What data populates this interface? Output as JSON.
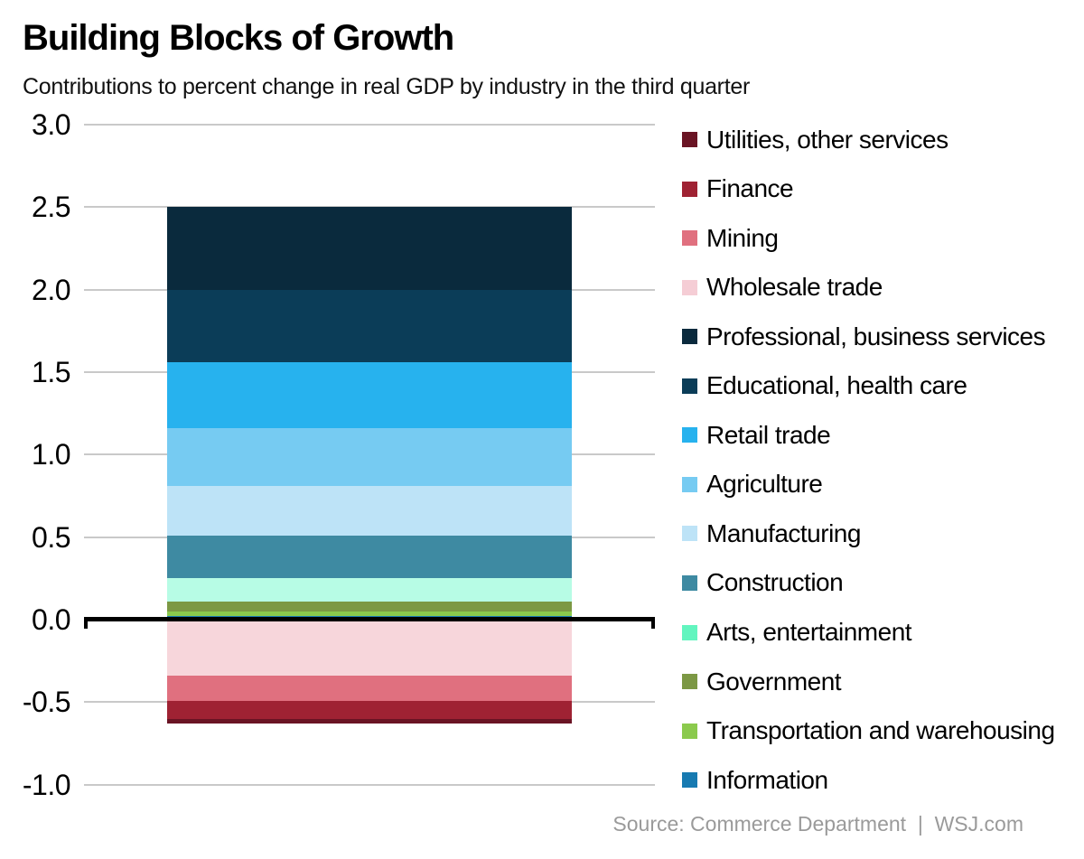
{
  "header": {
    "title": "Building Blocks of Growth",
    "subtitle": "Contributions to percent change in real GDP by industry in the third quarter"
  },
  "footer": {
    "source": "Source: Commerce Department  |  WSJ.com"
  },
  "colors": {
    "background": "#ffffff",
    "gridline": "#c9c9c9",
    "zero_axis": "#000000",
    "source_text": "#9a9a9a",
    "text": "#000000"
  },
  "chart_data": {
    "type": "bar",
    "stacked": true,
    "bar_count": 1,
    "categories": [
      ""
    ],
    "title": "Building Blocks of Growth",
    "subtitle": "Contributions to percent change in real GDP by industry in the third quarter",
    "xlabel": "",
    "ylabel": "",
    "ylim": [
      -1.0,
      3.0
    ],
    "grid": true,
    "legend_position": "right",
    "total_positive": 2.5,
    "total_negative": -0.63,
    "yticks": [
      {
        "label": "3.0",
        "value": 3.0
      },
      {
        "label": "2.5",
        "value": 2.5
      },
      {
        "label": "2.0",
        "value": 2.0
      },
      {
        "label": "1.5",
        "value": 1.5
      },
      {
        "label": "1.0",
        "value": 1.0
      },
      {
        "label": "0.5",
        "value": 0.5
      },
      {
        "label": "0.0",
        "value": 0.0
      },
      {
        "label": "-0.5",
        "value": -0.5
      },
      {
        "label": "-1.0",
        "value": -1.0
      }
    ],
    "series": [
      {
        "name": "Utilities, other services",
        "value": -0.03,
        "color": "#6a1424",
        "bar_color": "#6a1424"
      },
      {
        "name": "Finance",
        "value": -0.11,
        "color": "#9f2233",
        "bar_color": "#9f2233"
      },
      {
        "name": "Mining",
        "value": -0.15,
        "color": "#e0707f",
        "bar_color": "#e0707f"
      },
      {
        "name": "Wholesale trade",
        "value": -0.34,
        "color": "#f5cdd5",
        "bar_color": "#f7d6db"
      },
      {
        "name": "Professional, business services",
        "value": 0.5,
        "color": "#0a2a3d",
        "bar_color": "#0a2a3d"
      },
      {
        "name": "Educational, health care",
        "value": 0.44,
        "color": "#0b3d58",
        "bar_color": "#0b3d58"
      },
      {
        "name": "Retail trade",
        "value": 0.4,
        "color": "#27b2ee",
        "bar_color": "#27b2ee"
      },
      {
        "name": "Agriculture",
        "value": 0.35,
        "color": "#76cbf2",
        "bar_color": "#76cbf2"
      },
      {
        "name": "Manufacturing",
        "value": 0.3,
        "color": "#bde3f7",
        "bar_color": "#bde3f7"
      },
      {
        "name": "Construction",
        "value": 0.26,
        "color": "#3e8aa2",
        "bar_color": "#3e8aa2"
      },
      {
        "name": "Arts, entertainment",
        "value": 0.14,
        "color": "#62f5bf",
        "bar_color": "#b7fce5"
      },
      {
        "name": "Government",
        "value": 0.06,
        "color": "#7c9844",
        "bar_color": "#7c9844"
      },
      {
        "name": "Transportation and warehousing",
        "value": 0.03,
        "color": "#8bca4d",
        "bar_color": "#8bca4d"
      },
      {
        "name": "Information",
        "value": 0.02,
        "color": "#177ab1",
        "bar_color": "#177ab1"
      }
    ]
  }
}
